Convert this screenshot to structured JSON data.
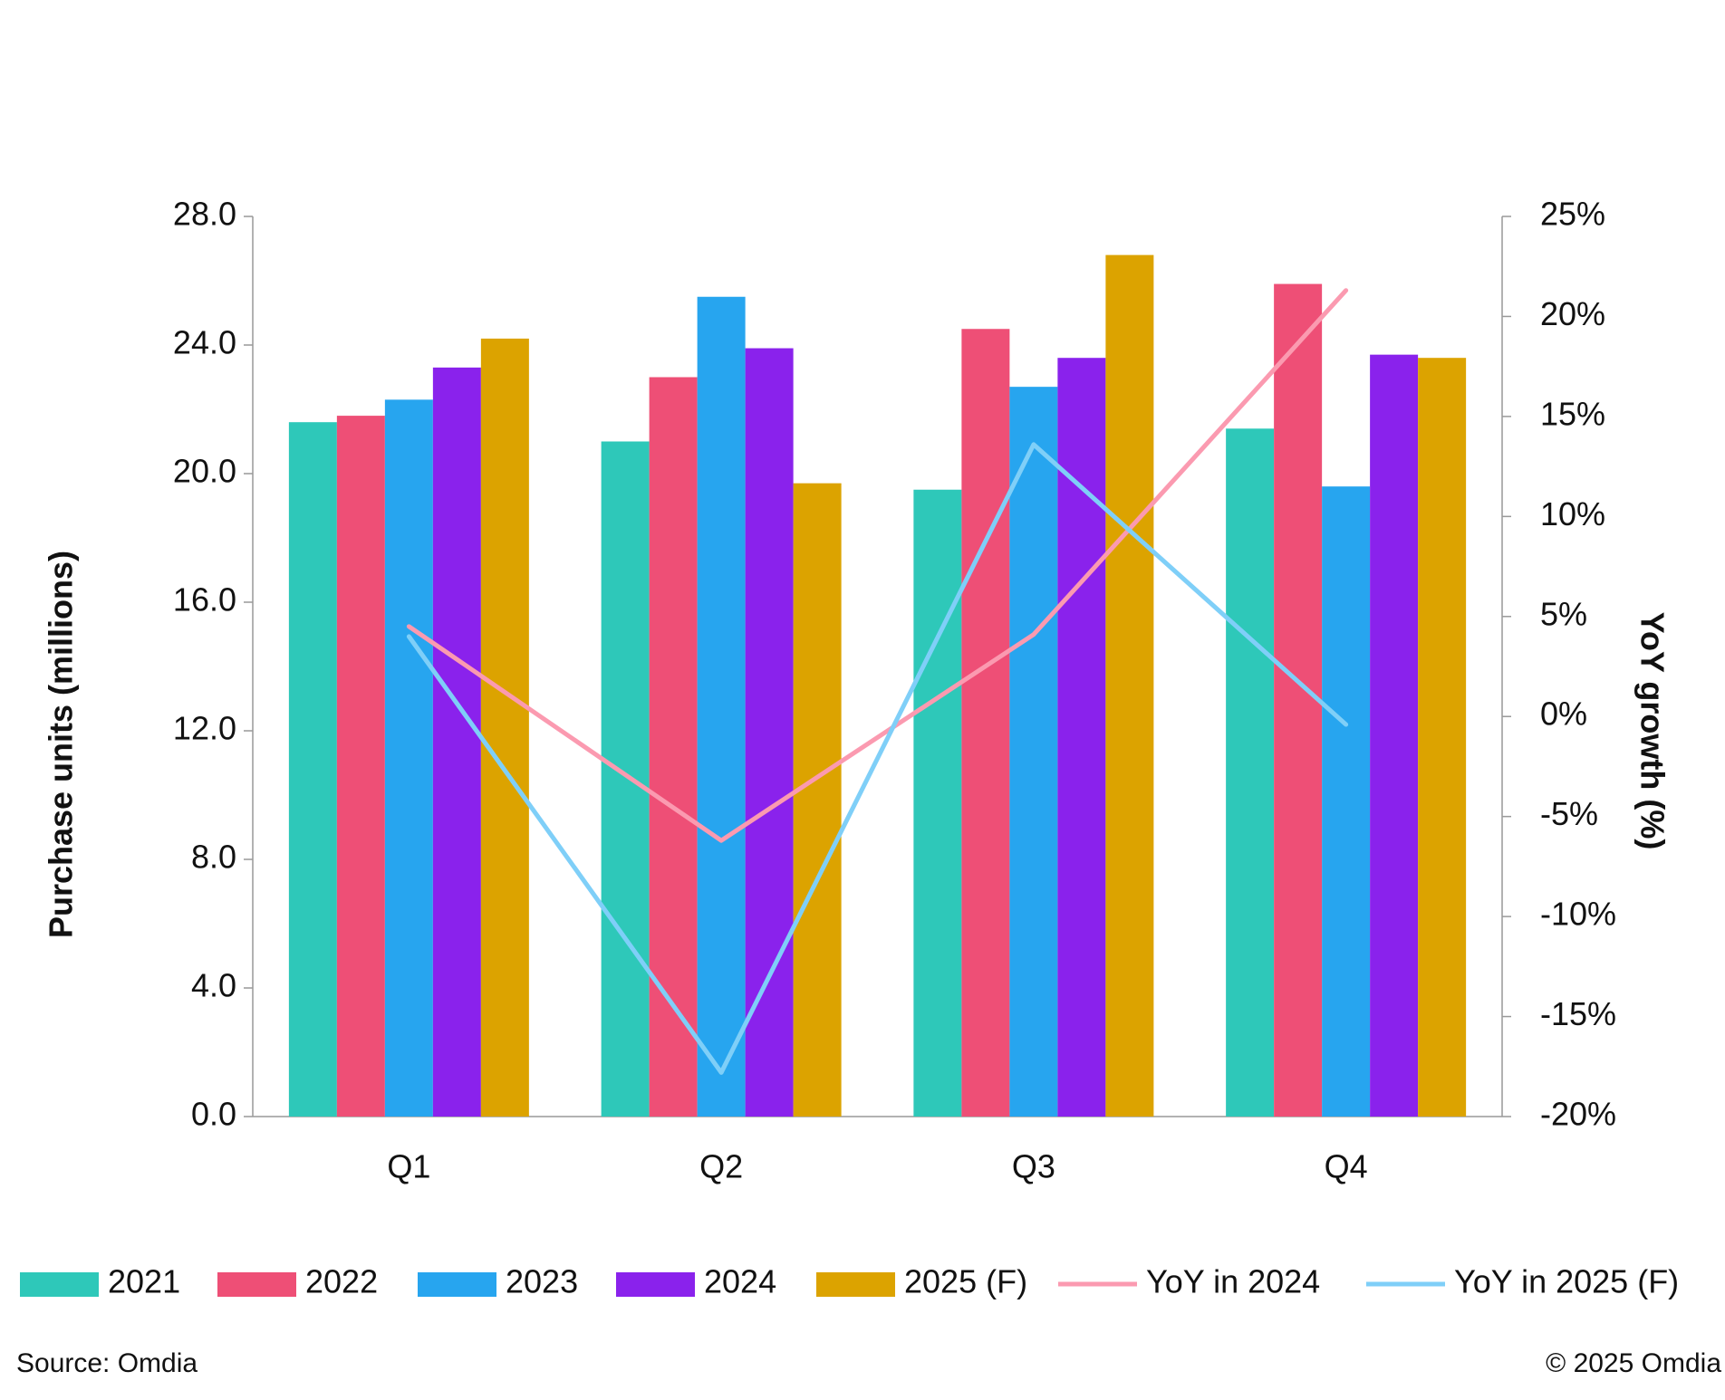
{
  "chart_data": {
    "type": "bar",
    "categories": [
      "Q1",
      "Q2",
      "Q3",
      "Q4"
    ],
    "series": [
      {
        "name": "2021",
        "color": "#2ec8b9",
        "values": [
          21.6,
          21.0,
          19.5,
          21.4
        ]
      },
      {
        "name": "2022",
        "color": "#ee4f76",
        "values": [
          21.8,
          23.0,
          24.5,
          25.9
        ]
      },
      {
        "name": "2023",
        "color": "#27a5ef",
        "values": [
          22.3,
          25.5,
          22.7,
          19.6
        ]
      },
      {
        "name": "2024",
        "color": "#8a22ec",
        "values": [
          23.3,
          23.9,
          23.6,
          23.7
        ]
      },
      {
        "name": "2025 (F)",
        "color": "#dca300",
        "values": [
          24.2,
          19.7,
          26.8,
          23.6
        ]
      },
      {
        "name": "YoY in 2024",
        "color": "#fb9ab0",
        "type": "line",
        "axis": "y2",
        "values": [
          4.5,
          -6.2,
          4.1,
          21.3
        ]
      },
      {
        "name": "YoY in 2025 (F)",
        "color": "#7fcff8",
        "type": "line",
        "axis": "y2",
        "values": [
          4.0,
          -17.8,
          13.6,
          -0.4
        ]
      }
    ],
    "y_label": "Purchase units (millions)",
    "y2_label": "YoY growth (%)",
    "ylim": [
      0,
      28
    ],
    "yticks": [
      {
        "value": 0,
        "label": "0.0"
      },
      {
        "value": 4,
        "label": "4.0"
      },
      {
        "value": 8,
        "label": "8.0"
      },
      {
        "value": 12,
        "label": "12.0"
      },
      {
        "value": 16,
        "label": "16.0"
      },
      {
        "value": 20,
        "label": "20.0"
      },
      {
        "value": 24,
        "label": "24.0"
      },
      {
        "value": 28,
        "label": "28.0"
      }
    ],
    "y2lim": [
      -20,
      25
    ],
    "y2ticks": [
      {
        "value": -20,
        "label": "-20%"
      },
      {
        "value": -15,
        "label": "-15%"
      },
      {
        "value": -10,
        "label": "-10%"
      },
      {
        "value": -5,
        "label": "-5%"
      },
      {
        "value": 0,
        "label": "0%"
      },
      {
        "value": 5,
        "label": "5%"
      },
      {
        "value": 10,
        "label": "10%"
      },
      {
        "value": 15,
        "label": "15%"
      },
      {
        "value": 20,
        "label": "20%"
      },
      {
        "value": 25,
        "label": "25%"
      }
    ],
    "legend": "bottom",
    "source": "Source: Omdia",
    "copyright": "© 2025 Omdia"
  }
}
